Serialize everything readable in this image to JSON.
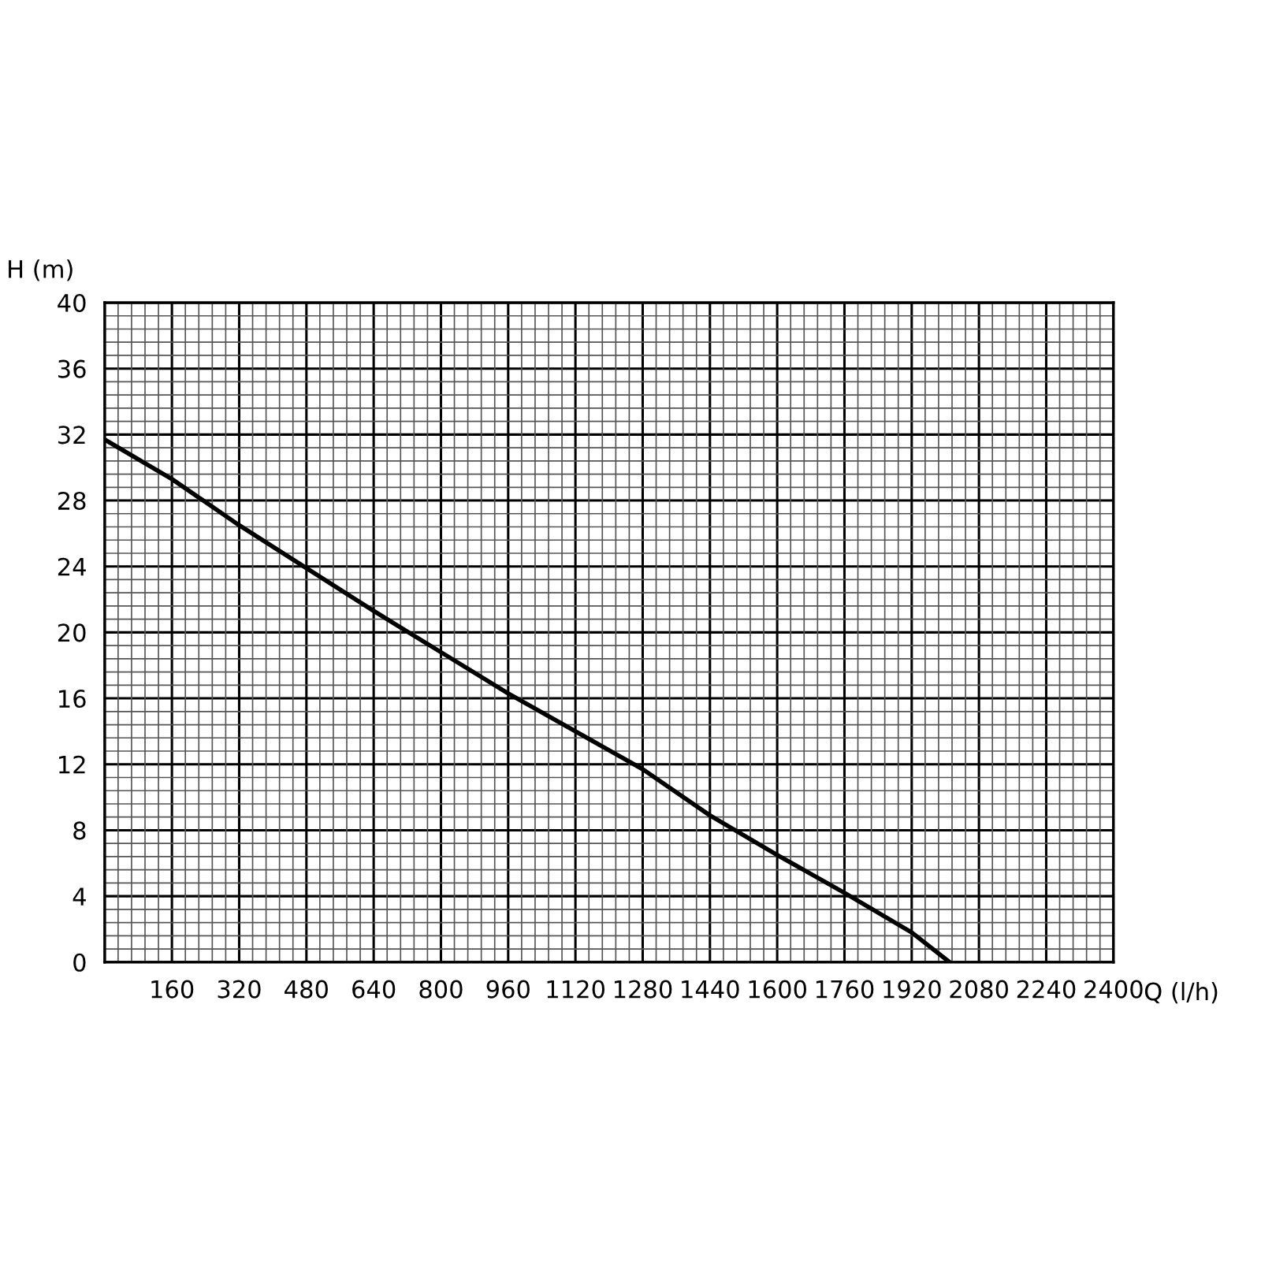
{
  "chart_data": {
    "type": "line",
    "xlabel": "Q (l/h)",
    "ylabel": "H (m)",
    "series": [
      {
        "color": "#000000",
        "x": [
          0,
          160,
          320,
          480,
          640,
          800,
          960,
          1280,
          1440,
          1600,
          1760,
          1920,
          2010
        ],
        "values": [
          31.7,
          29.3,
          26.5,
          23.9,
          21.3,
          18.8,
          16.3,
          11.7,
          8.9,
          6.5,
          4.2,
          1.8,
          0
        ]
      }
    ],
    "xlim": [
      0,
      2400
    ],
    "ylim": [
      0,
      40
    ],
    "xticks": [
      {
        "value": 0,
        "label": null
      },
      160,
      320,
      480,
      640,
      800,
      960,
      1120,
      1280,
      1440,
      1600,
      1760,
      1920,
      2080,
      2240,
      2400
    ],
    "yticks": [
      0,
      4,
      8,
      12,
      16,
      20,
      24,
      28,
      32,
      36,
      40
    ],
    "grid": true,
    "marker": "none",
    "line_style": "solid"
  }
}
